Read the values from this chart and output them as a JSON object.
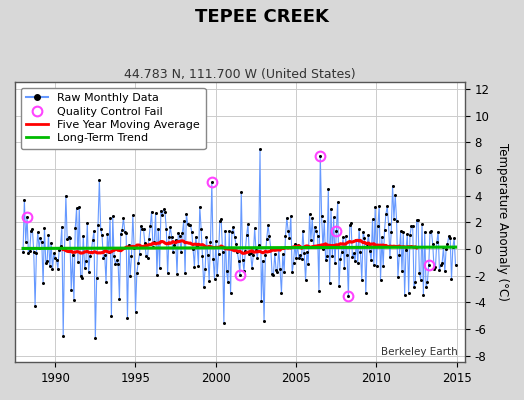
{
  "title": "TEPEE CREEK",
  "subtitle": "44.783 N, 111.700 W (United States)",
  "ylabel": "Temperature Anomaly (°C)",
  "watermark": "Berkeley Earth",
  "xlim": [
    1987.5,
    2015.5
  ],
  "ylim": [
    -8.5,
    12.5
  ],
  "yticks": [
    -8,
    -6,
    -4,
    -2,
    0,
    2,
    4,
    6,
    8,
    10,
    12
  ],
  "xticks": [
    1990,
    1995,
    2000,
    2005,
    2010,
    2015
  ],
  "background_color": "#d8d8d8",
  "plot_background": "#ffffff",
  "raw_line_color": "#6699ff",
  "raw_marker_color": "#000000",
  "qc_fail_color": "#ff44ff",
  "moving_avg_color": "#ff0000",
  "trend_color": "#00bb00",
  "title_fontsize": 13,
  "subtitle_fontsize": 9,
  "legend_fontsize": 8
}
